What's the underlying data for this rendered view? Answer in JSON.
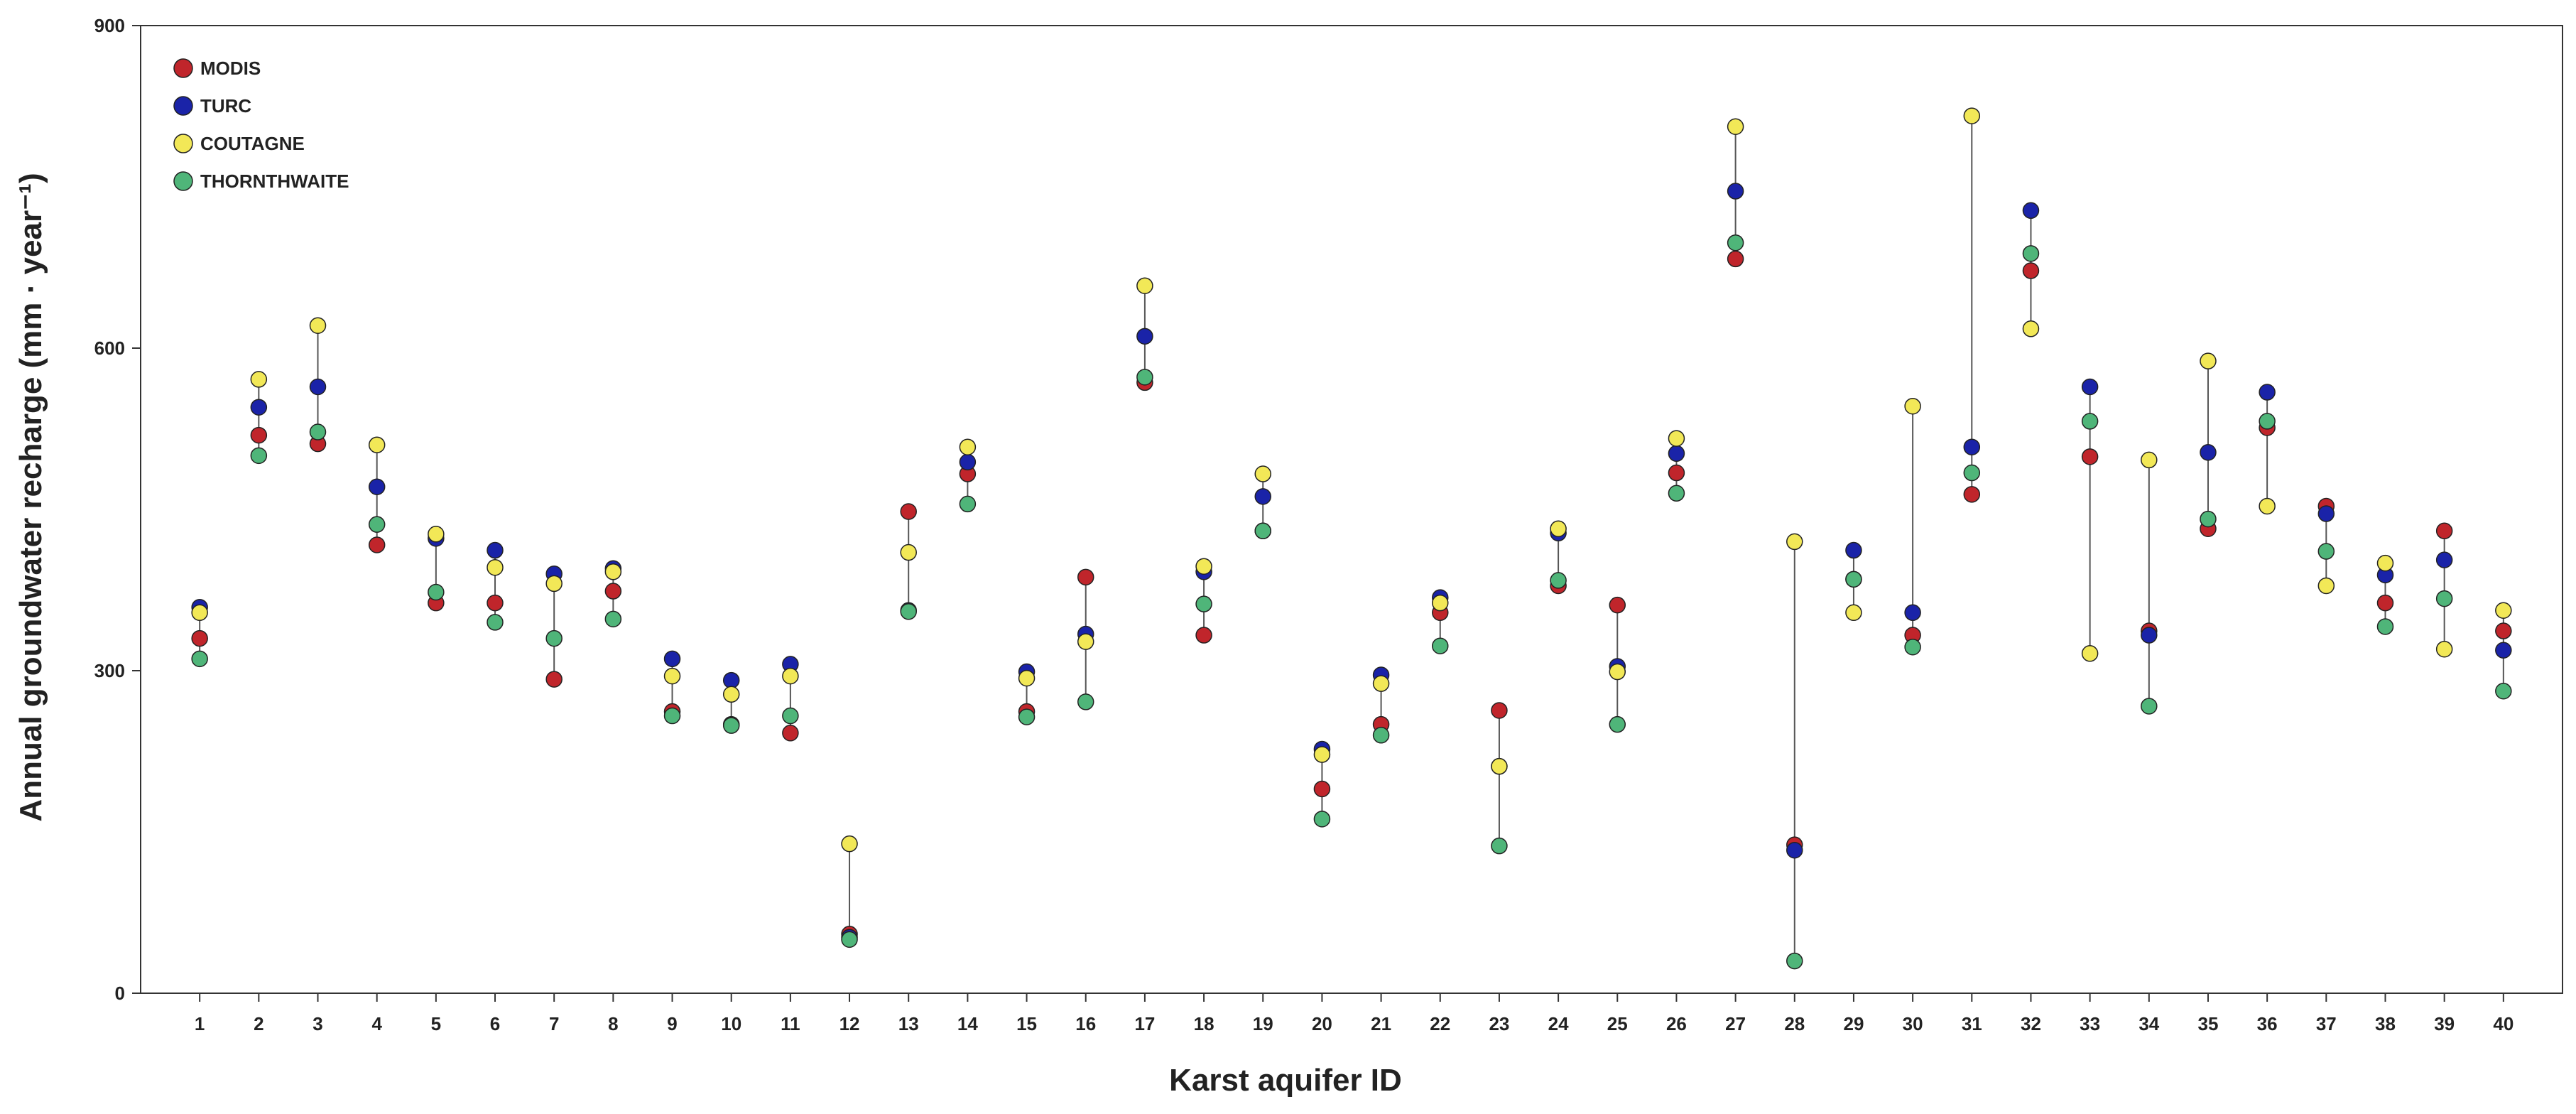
{
  "chart_data": {
    "type": "scatter",
    "xlabel": "Karst aquifer ID",
    "ylabel": "Annual groundwater recharge (mm · year⁻¹)",
    "ylim": [
      0,
      900
    ],
    "yticks": [
      0,
      300,
      600,
      900
    ],
    "xlim": [
      0,
      41
    ],
    "categories": [
      "1",
      "2",
      "3",
      "4",
      "5",
      "6",
      "7",
      "8",
      "9",
      "10",
      "11",
      "12",
      "13",
      "14",
      "15",
      "16",
      "17",
      "18",
      "19",
      "20",
      "21",
      "22",
      "23",
      "24",
      "25",
      "26",
      "27",
      "28",
      "29",
      "30",
      "31",
      "32",
      "33",
      "34",
      "35",
      "36",
      "37",
      "38",
      "39",
      "40"
    ],
    "grid": false,
    "legend_position": "top-left",
    "series": [
      {
        "name": "MODIS",
        "color": "#c0252b",
        "values": [
          330,
          519,
          511,
          417,
          363,
          363,
          292,
          374,
          262,
          250,
          242,
          55,
          448,
          483,
          262,
          387,
          568,
          333,
          430,
          190,
          250,
          354,
          263,
          379,
          361,
          484,
          683,
          138,
          385,
          333,
          464,
          672,
          499,
          337,
          432,
          526,
          453,
          363,
          430,
          337
        ]
      },
      {
        "name": "TURC",
        "color": "#1a23a8",
        "values": [
          359,
          545,
          564,
          471,
          423,
          412,
          390,
          395,
          311,
          291,
          306,
          52,
          356,
          494,
          299,
          334,
          611,
          392,
          462,
          227,
          296,
          368,
          211,
          428,
          304,
          502,
          746,
          133,
          412,
          354,
          508,
          728,
          564,
          333,
          503,
          559,
          446,
          389,
          403,
          319
        ]
      },
      {
        "name": "COUTAGNE",
        "color": "#f2e857",
        "values": [
          354,
          571,
          621,
          510,
          427,
          396,
          381,
          392,
          295,
          278,
          295,
          139,
          410,
          508,
          293,
          327,
          658,
          397,
          483,
          222,
          288,
          363,
          211,
          432,
          299,
          516,
          806,
          420,
          354,
          546,
          816,
          618,
          316,
          496,
          588,
          453,
          379,
          400,
          320,
          356
        ]
      },
      {
        "name": "THORNTHWAITE",
        "color": "#4fb579",
        "values": [
          311,
          500,
          522,
          436,
          373,
          345,
          330,
          348,
          258,
          249,
          258,
          50,
          355,
          455,
          257,
          271,
          573,
          362,
          430,
          162,
          240,
          323,
          137,
          384,
          250,
          465,
          698,
          30,
          385,
          322,
          484,
          688,
          532,
          267,
          441,
          532,
          411,
          341,
          367,
          281
        ]
      }
    ]
  }
}
